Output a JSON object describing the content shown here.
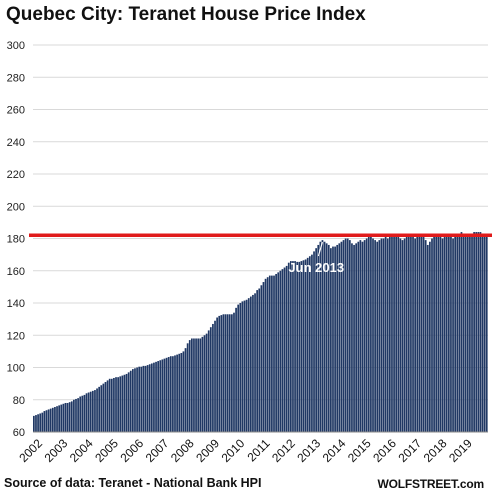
{
  "chart_data": {
    "type": "bar",
    "title": "Quebec City: Teranet House Price Index",
    "source": "Source of data: Teranet - National Bank HPI",
    "brand": "WOLFSTREET.com",
    "ylim": [
      60,
      300
    ],
    "y_ticks": [
      60,
      80,
      100,
      120,
      140,
      160,
      180,
      200,
      220,
      240,
      260,
      280,
      300
    ],
    "grid": true,
    "bar_color": "#203864",
    "reference_line": {
      "value": 182,
      "color": "#e01b1b"
    },
    "annotation": {
      "text": "Jun 2013",
      "year": 2013,
      "month": 6
    },
    "x_tick_labels": [
      "2002",
      "2003",
      "2004",
      "2005",
      "2006",
      "2007",
      "2008",
      "2009",
      "2010",
      "2011",
      "2012",
      "2013",
      "2014",
      "2015",
      "2016",
      "2017",
      "2018",
      "2019"
    ],
    "start": {
      "year": 2002,
      "month": 1
    },
    "values_by_year": [
      {
        "year": 2002,
        "values": [
          70,
          70.5,
          71,
          71.5,
          72,
          73,
          73.5,
          74,
          74.5,
          75,
          75.5,
          76
        ]
      },
      {
        "year": 2003,
        "values": [
          76.5,
          77,
          77.5,
          78,
          78,
          78.5,
          79,
          80,
          80.5,
          81,
          82,
          82.5
        ]
      },
      {
        "year": 2004,
        "values": [
          83,
          84,
          84.5,
          85,
          85.5,
          86,
          87,
          88,
          89,
          90,
          91,
          92
        ]
      },
      {
        "year": 2005,
        "values": [
          93,
          93,
          93.5,
          94,
          94,
          94.5,
          95,
          95.5,
          96,
          97,
          98,
          99
        ]
      },
      {
        "year": 2006,
        "values": [
          99.5,
          100,
          100.5,
          100.5,
          101,
          101,
          101.5,
          102,
          102.5,
          103,
          103.5,
          104
        ]
      },
      {
        "year": 2007,
        "values": [
          104.5,
          105,
          105.5,
          106,
          106.5,
          107,
          107,
          107.5,
          108,
          108.5,
          109,
          110
        ]
      },
      {
        "year": 2008,
        "values": [
          112,
          115,
          117,
          118,
          118,
          118,
          118,
          118,
          119,
          120,
          121,
          123
        ]
      },
      {
        "year": 2009,
        "values": [
          125,
          127,
          129,
          131,
          132,
          132.5,
          133,
          133,
          133,
          133,
          133,
          134
        ]
      },
      {
        "year": 2010,
        "values": [
          137,
          139,
          140,
          141,
          141.5,
          142,
          143,
          144,
          145,
          146,
          148,
          149
        ]
      },
      {
        "year": 2011,
        "values": [
          151,
          153,
          155,
          156,
          157,
          157,
          157,
          158,
          159,
          160,
          161,
          162
        ]
      },
      {
        "year": 2012,
        "values": [
          163,
          165,
          166,
          166,
          166,
          165.5,
          165.5,
          166,
          166.5,
          167,
          168,
          169
        ]
      },
      {
        "year": 2013,
        "values": [
          170,
          172,
          174,
          176,
          178,
          179,
          178,
          177,
          176,
          174,
          175,
          175
        ]
      },
      {
        "year": 2014,
        "values": [
          176,
          177,
          178,
          179,
          180,
          180,
          179,
          177,
          176,
          177,
          178,
          179
        ]
      },
      {
        "year": 2015,
        "values": [
          178,
          179,
          180,
          181,
          181,
          180,
          179,
          178,
          179,
          180,
          180,
          181
        ]
      },
      {
        "year": 2016,
        "values": [
          180,
          181,
          182,
          182,
          182,
          181,
          180,
          179,
          180,
          181,
          182,
          182
        ]
      },
      {
        "year": 2017,
        "values": [
          181,
          180,
          181,
          182,
          182,
          181,
          179,
          176,
          178,
          180,
          182,
          183
        ]
      },
      {
        "year": 2018,
        "values": [
          182,
          181,
          180,
          181,
          182,
          182,
          181,
          180,
          181,
          182,
          183,
          184
        ]
      },
      {
        "year": 2019,
        "values": [
          183,
          182,
          181,
          182,
          183,
          184,
          184,
          184,
          184,
          183,
          182,
          182
        ]
      }
    ]
  }
}
